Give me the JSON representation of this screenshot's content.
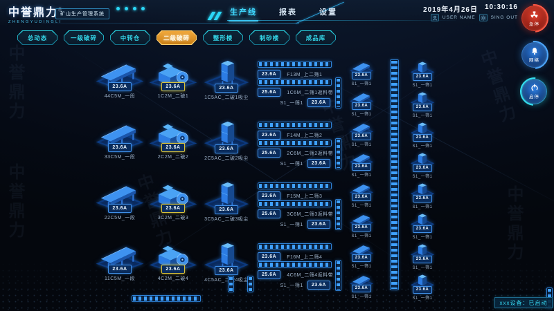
{
  "header": {
    "brand": "中誉鼎力",
    "brand_reg": "®",
    "brand_sub": "ZHENGYUDINGLI",
    "system_badge": "矿山生产管理系统",
    "nav": [
      {
        "label": "生产线",
        "active": true
      },
      {
        "label": "报表",
        "active": false
      },
      {
        "label": "设置",
        "active": false
      }
    ],
    "date": "2019年4月26日",
    "time": "10:30:16",
    "user_label": "USER NAME",
    "signout_label": "SING OUT"
  },
  "tabs": [
    {
      "label": "总动态",
      "active": false
    },
    {
      "label": "一级破碎",
      "active": false
    },
    {
      "label": "中转仓",
      "active": false
    },
    {
      "label": "二级破碎",
      "active": true
    },
    {
      "label": "整形楼",
      "active": false
    },
    {
      "label": "制砂楼",
      "active": false
    },
    {
      "label": "成品库",
      "active": false
    }
  ],
  "side_buttons": [
    {
      "label": "急停",
      "icon": "radiation-icon",
      "accent": "#e03222"
    },
    {
      "label": "网络",
      "icon": "bell-icon",
      "accent": "#2e8fe8"
    },
    {
      "label": "启停",
      "icon": "power-icon",
      "accent": "#28d8e8"
    }
  ],
  "rows": [
    {
      "feeder": {
        "amp": "23.6A",
        "label": "44C5M_一段"
      },
      "crusher": {
        "amp": "23.6A",
        "label": "1C2M_二破1"
      },
      "dust": {
        "amp": "23.6A",
        "label": "1C5AC_二破1吸尘"
      },
      "belt_up": {
        "amp": "23.6A",
        "label": "F13M_上二筛1"
      },
      "belt_return": {
        "amp": "25.6A",
        "label": "1C6M_二筛1返料带"
      },
      "screen_ref": {
        "amp": "23.6A",
        "label": "S1_一筛1"
      }
    },
    {
      "feeder": {
        "amp": "23.6A",
        "label": "33C5M_一段"
      },
      "crusher": {
        "amp": "23.6A",
        "label": "2C2M_二破2"
      },
      "dust": {
        "amp": "23.6A",
        "label": "2C5AC_二破2吸尘"
      },
      "belt_up": {
        "amp": "23.6A",
        "label": "F14M_上二筛2"
      },
      "belt_return": {
        "amp": "25.6A",
        "label": "2C6M_二筛2返料带"
      },
      "screen_ref": {
        "amp": "23.6A",
        "label": "S1_一筛1"
      }
    },
    {
      "feeder": {
        "amp": "23.6A",
        "label": "22C5M_一段"
      },
      "crusher": {
        "amp": "23.6A",
        "label": "3C2M_二破3"
      },
      "dust": {
        "amp": "23.6A",
        "label": "3C5AC_二破3吸尘"
      },
      "belt_up": {
        "amp": "23.6A",
        "label": "F15M_上二筛3"
      },
      "belt_return": {
        "amp": "25.6A",
        "label": "3C6M_二筛3返料带"
      },
      "screen_ref": {
        "amp": "23.6A",
        "label": "S1_一筛1"
      }
    },
    {
      "feeder": {
        "amp": "23.6A",
        "label": "11C5M_一段"
      },
      "crusher": {
        "amp": "23.6A",
        "label": "4C2M_二破4"
      },
      "dust": {
        "amp": "23.6A",
        "label": "4C5AC_二破4吸尘"
      },
      "belt_up": {
        "amp": "23.6A",
        "label": "F16M_上二筛4"
      },
      "belt_return": {
        "amp": "25.6A",
        "label": "4C6M_二筛4返料带"
      },
      "screen_ref": {
        "amp": "23.6A",
        "label": "S1_一筛1"
      }
    }
  ],
  "right_belts": [
    {
      "amp": "23.6A",
      "label": "S1_一筛1"
    },
    {
      "amp": "23.6A",
      "label": "S1_一筛1"
    },
    {
      "amp": "23.6A",
      "label": "S1_一筛1"
    },
    {
      "amp": "23.6A",
      "label": "S1_一筛1"
    },
    {
      "amp": "23.6A",
      "label": "S1_一筛1"
    },
    {
      "amp": "23.6A",
      "label": "S1_一筛1"
    },
    {
      "amp": "23.6A",
      "label": "S1_一筛1"
    },
    {
      "amp": "23.6A",
      "label": "S1_一筛1"
    }
  ],
  "right_bins": [
    {
      "amp": "23.6A",
      "label": "S1_一筛1"
    },
    {
      "amp": "23.6A",
      "label": "S1_一筛1"
    },
    {
      "amp": "23.6A",
      "label": "S1_一筛1"
    },
    {
      "amp": "23.6A",
      "label": "S1_一筛1"
    },
    {
      "amp": "23.6A",
      "label": "S1_一筛1"
    },
    {
      "amp": "23.6A",
      "label": "S1_一筛1"
    },
    {
      "amp": "23.6A",
      "label": "S1_一筛1"
    },
    {
      "amp": "23.6A",
      "label": "S1_一筛1"
    }
  ],
  "status_bar": {
    "text": "xxx设备：已启动"
  },
  "watermark": "中誉鼎力",
  "colors": {
    "accent_cyan": "#2bd4ee",
    "accent_orange": "#f0a028",
    "alarm_red": "#d43222",
    "badge_blue": "#3f8fe8",
    "badge_yellow": "#d8c23a"
  }
}
